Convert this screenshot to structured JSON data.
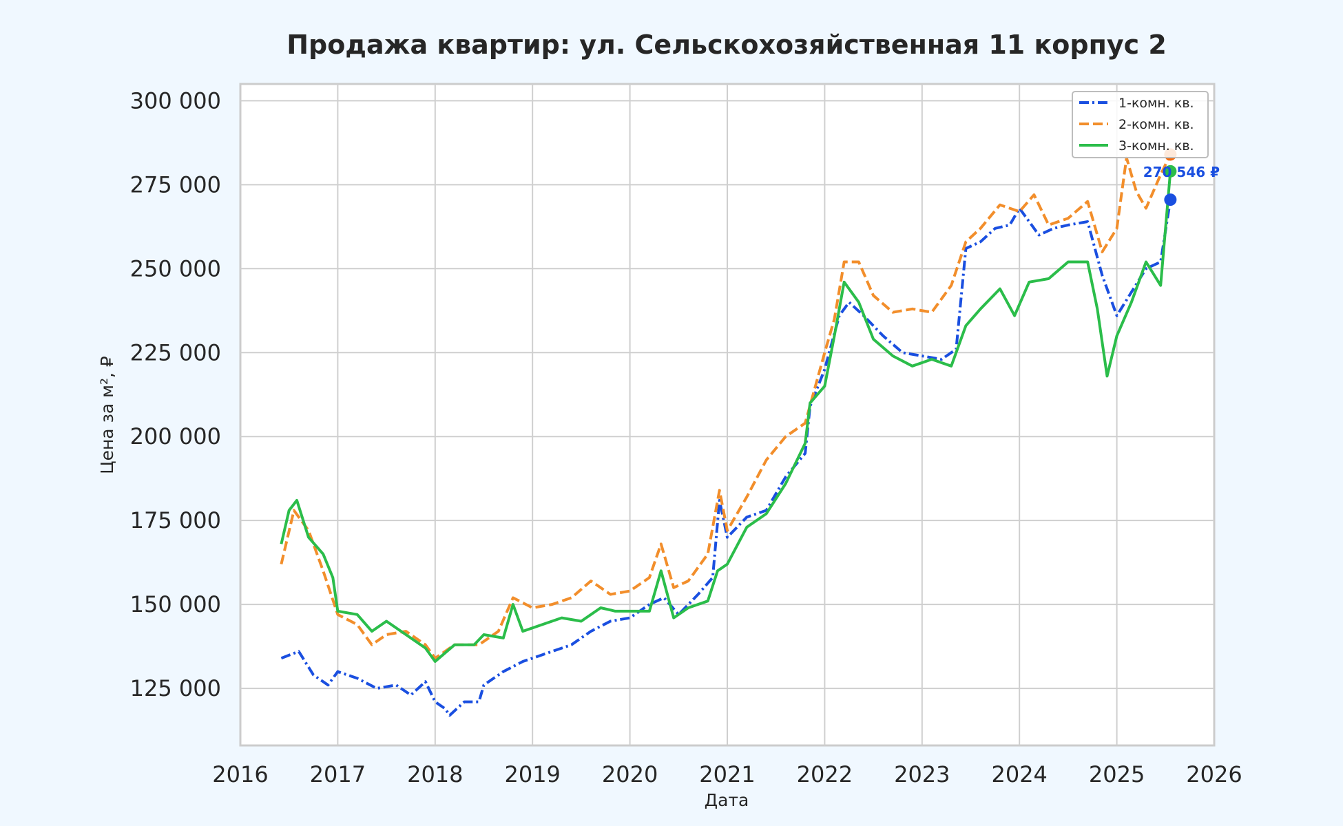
{
  "chart_data": {
    "type": "line",
    "title": "Продажа квартир: ул. Сельскохозяйственная 11 корпус 2",
    "xlabel": "Дата",
    "ylabel": "Цена за м², ₽",
    "xlim": [
      2016,
      2026
    ],
    "ylim": [
      108000,
      305000
    ],
    "x_ticks": [
      "2016",
      "2017",
      "2018",
      "2019",
      "2020",
      "2021",
      "2022",
      "2023",
      "2024",
      "2025",
      "2026"
    ],
    "y_ticks": [
      {
        "value": 125000,
        "label": "125 000"
      },
      {
        "value": 150000,
        "label": "150 000"
      },
      {
        "value": 175000,
        "label": "175 000"
      },
      {
        "value": 200000,
        "label": "200 000"
      },
      {
        "value": 225000,
        "label": "225 000"
      },
      {
        "value": 250000,
        "label": "250 000"
      },
      {
        "value": 275000,
        "label": "275 000"
      },
      {
        "value": 300000,
        "label": "300 000"
      }
    ],
    "grid": true,
    "legend": "top-right",
    "series": [
      {
        "name": "1-комн. кв.",
        "color": "#1a4fe0",
        "dash": "dashdot",
        "points": [
          [
            2016.42,
            134000
          ],
          [
            2016.6,
            136000
          ],
          [
            2016.75,
            129000
          ],
          [
            2016.9,
            126000
          ],
          [
            2017.0,
            130000
          ],
          [
            2017.2,
            128000
          ],
          [
            2017.4,
            125000
          ],
          [
            2017.6,
            126000
          ],
          [
            2017.75,
            123000
          ],
          [
            2017.9,
            127000
          ],
          [
            2018.0,
            121000
          ],
          [
            2018.1,
            119000
          ],
          [
            2018.15,
            117000
          ],
          [
            2018.3,
            121000
          ],
          [
            2018.45,
            121000
          ],
          [
            2018.5,
            126000
          ],
          [
            2018.7,
            130000
          ],
          [
            2018.9,
            133000
          ],
          [
            2019.0,
            134000
          ],
          [
            2019.2,
            136000
          ],
          [
            2019.4,
            138000
          ],
          [
            2019.6,
            142000
          ],
          [
            2019.8,
            145000
          ],
          [
            2020.0,
            146000
          ],
          [
            2020.2,
            150000
          ],
          [
            2020.35,
            152000
          ],
          [
            2020.5,
            147000
          ],
          [
            2020.7,
            153000
          ],
          [
            2020.85,
            158000
          ],
          [
            2020.92,
            181000
          ],
          [
            2021.0,
            170000
          ],
          [
            2021.2,
            176000
          ],
          [
            2021.4,
            178000
          ],
          [
            2021.6,
            188000
          ],
          [
            2021.8,
            195000
          ],
          [
            2021.85,
            209000
          ],
          [
            2022.0,
            220000
          ],
          [
            2022.15,
            236000
          ],
          [
            2022.25,
            240000
          ],
          [
            2022.4,
            236000
          ],
          [
            2022.6,
            230000
          ],
          [
            2022.8,
            225000
          ],
          [
            2023.0,
            224000
          ],
          [
            2023.2,
            223000
          ],
          [
            2023.35,
            226000
          ],
          [
            2023.45,
            256000
          ],
          [
            2023.6,
            258000
          ],
          [
            2023.75,
            262000
          ],
          [
            2023.9,
            263000
          ],
          [
            2024.0,
            268000
          ],
          [
            2024.2,
            260000
          ],
          [
            2024.35,
            262000
          ],
          [
            2024.5,
            263000
          ],
          [
            2024.7,
            264000
          ],
          [
            2024.85,
            248000
          ],
          [
            2025.0,
            236000
          ],
          [
            2025.15,
            243000
          ],
          [
            2025.3,
            250000
          ],
          [
            2025.45,
            252000
          ],
          [
            2025.55,
            270546
          ]
        ]
      },
      {
        "name": "2-комн. кв.",
        "color": "#f28e2b",
        "dash": "dashed",
        "points": [
          [
            2016.42,
            162000
          ],
          [
            2016.55,
            178000
          ],
          [
            2016.7,
            172000
          ],
          [
            2016.85,
            160000
          ],
          [
            2017.0,
            147000
          ],
          [
            2017.2,
            144000
          ],
          [
            2017.35,
            138000
          ],
          [
            2017.5,
            141000
          ],
          [
            2017.7,
            142000
          ],
          [
            2017.9,
            138000
          ],
          [
            2018.0,
            134000
          ],
          [
            2018.2,
            138000
          ],
          [
            2018.45,
            138000
          ],
          [
            2018.65,
            142000
          ],
          [
            2018.8,
            152000
          ],
          [
            2019.0,
            149000
          ],
          [
            2019.2,
            150000
          ],
          [
            2019.4,
            152000
          ],
          [
            2019.6,
            157000
          ],
          [
            2019.8,
            153000
          ],
          [
            2020.0,
            154000
          ],
          [
            2020.2,
            158000
          ],
          [
            2020.32,
            168000
          ],
          [
            2020.45,
            155000
          ],
          [
            2020.6,
            157000
          ],
          [
            2020.8,
            165000
          ],
          [
            2020.92,
            184000
          ],
          [
            2021.0,
            172000
          ],
          [
            2021.2,
            182000
          ],
          [
            2021.4,
            193000
          ],
          [
            2021.6,
            200000
          ],
          [
            2021.8,
            204000
          ],
          [
            2022.0,
            225000
          ],
          [
            2022.1,
            235000
          ],
          [
            2022.2,
            252000
          ],
          [
            2022.35,
            252000
          ],
          [
            2022.5,
            242000
          ],
          [
            2022.7,
            237000
          ],
          [
            2022.9,
            238000
          ],
          [
            2023.1,
            237000
          ],
          [
            2023.3,
            245000
          ],
          [
            2023.45,
            258000
          ],
          [
            2023.6,
            262000
          ],
          [
            2023.8,
            269000
          ],
          [
            2024.0,
            267000
          ],
          [
            2024.15,
            272000
          ],
          [
            2024.3,
            263000
          ],
          [
            2024.5,
            265000
          ],
          [
            2024.7,
            270000
          ],
          [
            2024.85,
            255000
          ],
          [
            2025.0,
            262000
          ],
          [
            2025.1,
            283000
          ],
          [
            2025.2,
            273000
          ],
          [
            2025.3,
            268000
          ],
          [
            2025.45,
            278000
          ],
          [
            2025.55,
            284000
          ]
        ]
      },
      {
        "name": "3-комн. кв.",
        "color": "#2bbd4a",
        "dash": "solid",
        "points": [
          [
            2016.42,
            168000
          ],
          [
            2016.5,
            178000
          ],
          [
            2016.58,
            181000
          ],
          [
            2016.7,
            170000
          ],
          [
            2016.85,
            165000
          ],
          [
            2016.95,
            158000
          ],
          [
            2017.0,
            148000
          ],
          [
            2017.2,
            147000
          ],
          [
            2017.35,
            142000
          ],
          [
            2017.5,
            145000
          ],
          [
            2017.7,
            141000
          ],
          [
            2017.9,
            137000
          ],
          [
            2018.0,
            133000
          ],
          [
            2018.2,
            138000
          ],
          [
            2018.4,
            138000
          ],
          [
            2018.5,
            141000
          ],
          [
            2018.7,
            140000
          ],
          [
            2018.8,
            150000
          ],
          [
            2018.9,
            142000
          ],
          [
            2019.1,
            144000
          ],
          [
            2019.3,
            146000
          ],
          [
            2019.5,
            145000
          ],
          [
            2019.7,
            149000
          ],
          [
            2019.85,
            148000
          ],
          [
            2020.0,
            148000
          ],
          [
            2020.2,
            148000
          ],
          [
            2020.32,
            160000
          ],
          [
            2020.45,
            146000
          ],
          [
            2020.6,
            149000
          ],
          [
            2020.8,
            151000
          ],
          [
            2020.9,
            160000
          ],
          [
            2021.0,
            162000
          ],
          [
            2021.2,
            173000
          ],
          [
            2021.4,
            177000
          ],
          [
            2021.6,
            186000
          ],
          [
            2021.8,
            198000
          ],
          [
            2021.85,
            210000
          ],
          [
            2022.0,
            215000
          ],
          [
            2022.1,
            230000
          ],
          [
            2022.2,
            246000
          ],
          [
            2022.35,
            240000
          ],
          [
            2022.5,
            229000
          ],
          [
            2022.7,
            224000
          ],
          [
            2022.9,
            221000
          ],
          [
            2023.1,
            223000
          ],
          [
            2023.3,
            221000
          ],
          [
            2023.45,
            233000
          ],
          [
            2023.6,
            238000
          ],
          [
            2023.8,
            244000
          ],
          [
            2023.95,
            236000
          ],
          [
            2024.1,
            246000
          ],
          [
            2024.3,
            247000
          ],
          [
            2024.5,
            252000
          ],
          [
            2024.7,
            252000
          ],
          [
            2024.8,
            238000
          ],
          [
            2024.9,
            218000
          ],
          [
            2025.0,
            230000
          ],
          [
            2025.15,
            240000
          ],
          [
            2025.3,
            252000
          ],
          [
            2025.45,
            245000
          ],
          [
            2025.55,
            279000
          ]
        ]
      }
    ],
    "annotations": [
      {
        "text": "270 546 ₽",
        "color": "#1a4fe0",
        "x": 2025.55,
        "y": 270546
      }
    ],
    "end_markers": [
      {
        "color": "#1a4fe0",
        "x": 2025.55,
        "y": 270546
      },
      {
        "color": "#f26a0f",
        "x": 2025.55,
        "y": 284000
      },
      {
        "color": "#2bbd4a",
        "x": 2025.55,
        "y": 279000
      }
    ]
  }
}
